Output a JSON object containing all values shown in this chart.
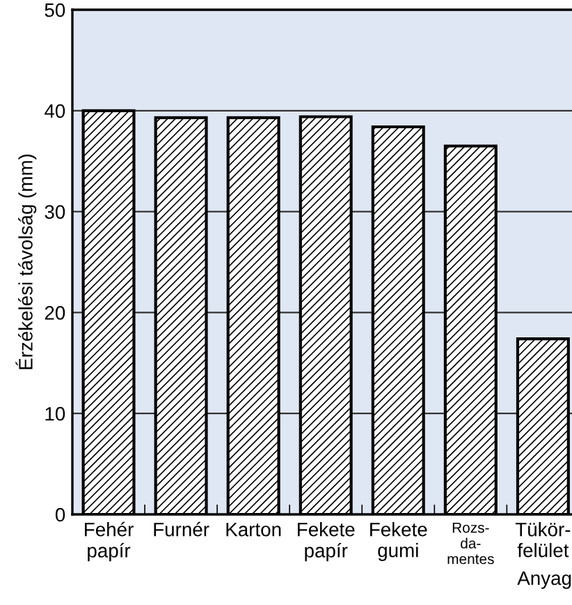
{
  "chart_data": {
    "type": "bar",
    "ylabel": "Érzékelési távolság (mm)",
    "xlabel": "Anyag",
    "categories": [
      "Fehér\npapír",
      "Furnér",
      "Karton",
      "Fekete\npapír",
      "Fekete\ngumi",
      "Rozs-\nda-\nmentes",
      "Tükör-\nfelület"
    ],
    "values": [
      40.0,
      39.3,
      39.3,
      39.4,
      38.4,
      36.5,
      17.4
    ],
    "color": "#000000",
    "ylim": [
      0,
      50
    ],
    "yticks": [
      0,
      10,
      20,
      30,
      40,
      50
    ],
    "grid": "y"
  }
}
